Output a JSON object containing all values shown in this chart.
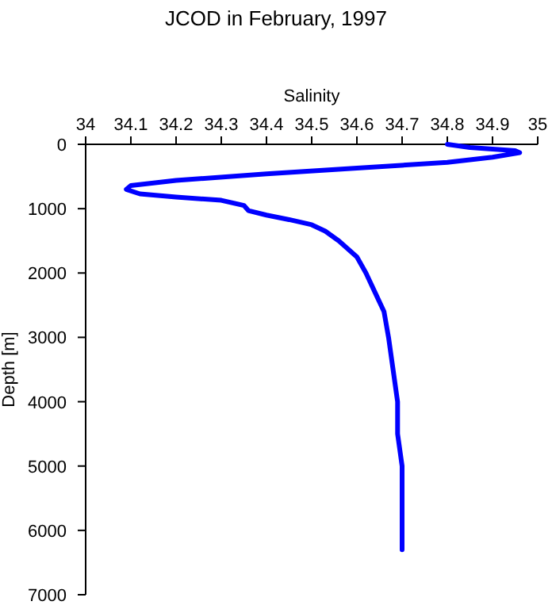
{
  "chart_data": {
    "type": "line",
    "title": "JCOD in February, 1997",
    "xlabel": "Salinity",
    "ylabel": "Depth [m]",
    "xlim": [
      34,
      35
    ],
    "xticks": [
      34,
      34.1,
      34.2,
      34.3,
      34.4,
      34.5,
      34.6,
      34.7,
      34.8,
      34.9,
      35
    ],
    "ylim": [
      7000,
      0
    ],
    "yticks": [
      0,
      1000,
      2000,
      3000,
      4000,
      5000,
      6000,
      7000
    ],
    "grid": false,
    "marker": "none",
    "line_style": "solid",
    "series": [
      {
        "color": "#0000ff",
        "x": [
          34.8,
          34.85,
          34.95,
          34.96,
          34.9,
          34.8,
          34.6,
          34.4,
          34.2,
          34.1,
          34.09,
          34.12,
          34.2,
          34.3,
          34.35,
          34.36,
          34.4,
          34.45,
          34.5,
          34.53,
          34.56,
          34.6,
          34.62,
          34.64,
          34.66,
          34.67,
          34.68,
          34.69,
          34.69,
          34.7,
          34.7
        ],
        "values": [
          0,
          50,
          100,
          130,
          200,
          280,
          370,
          460,
          560,
          640,
          700,
          770,
          820,
          870,
          950,
          1030,
          1100,
          1170,
          1250,
          1350,
          1500,
          1750,
          2000,
          2300,
          2600,
          3000,
          3500,
          4000,
          4500,
          5000,
          6300
        ]
      }
    ]
  }
}
